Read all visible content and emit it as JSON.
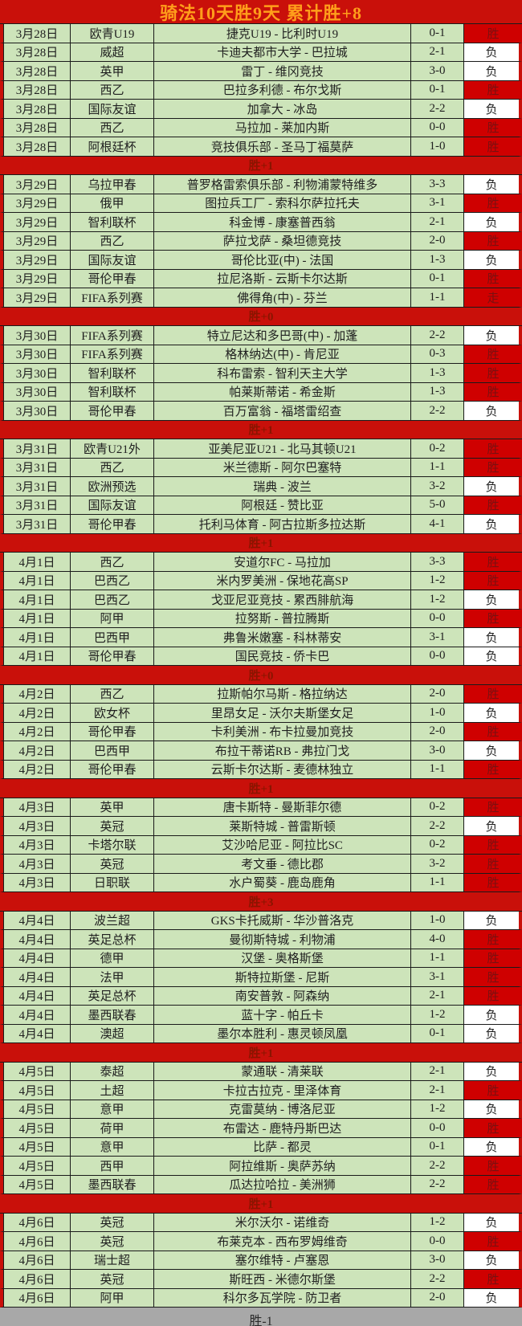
{
  "title": "骑法10天胜9天  累计胜+8",
  "colors": {
    "frame_red": "#c9100a",
    "title_text": "#ff9e1b",
    "row_green": "#cde4ba",
    "win_red": "#cf0000",
    "win_text": "#7a1010",
    "sep_text": "#8a1500",
    "footer_gray": "#a8a8a8",
    "text": "#1f1f1f"
  },
  "table": {
    "sections": [
      {
        "rows": [
          {
            "date": "3月28日",
            "league": "欧青U19",
            "match": "捷克U19 - 比利时U19",
            "score": "0-1",
            "result": "胜"
          },
          {
            "date": "3月28日",
            "league": "威超",
            "match": "卡迪夫都市大学 - 巴拉城",
            "score": "2-1",
            "result": "负"
          },
          {
            "date": "3月28日",
            "league": "英甲",
            "match": "雷丁 - 维冈竞技",
            "score": "3-0",
            "result": "负"
          },
          {
            "date": "3月28日",
            "league": "西乙",
            "match": "巴拉多利德 - 布尔戈斯",
            "score": "0-1",
            "result": "胜"
          },
          {
            "date": "3月28日",
            "league": "国际友谊",
            "match": "加拿大 - 冰岛",
            "score": "2-2",
            "result": "负"
          },
          {
            "date": "3月28日",
            "league": "西乙",
            "match": "马拉加 - 莱加内斯",
            "score": "0-0",
            "result": "胜"
          },
          {
            "date": "3月28日",
            "league": "阿根廷杯",
            "match": "竞技俱乐部 - 圣马丁福莫萨",
            "score": "1-0",
            "result": "胜"
          }
        ],
        "summary": "胜+1",
        "summary_style": "red"
      },
      {
        "rows": [
          {
            "date": "3月29日",
            "league": "乌拉甲春",
            "match": "普罗格雷索俱乐部 - 利物浦蒙特维多",
            "score": "3-3",
            "result": "负"
          },
          {
            "date": "3月29日",
            "league": "俄甲",
            "match": "图拉兵工厂 - 索科尔萨拉托夫",
            "score": "3-1",
            "result": "胜"
          },
          {
            "date": "3月29日",
            "league": "智利联杯",
            "match": "科金博 - 康塞普西翁",
            "score": "2-1",
            "result": "负"
          },
          {
            "date": "3月29日",
            "league": "西乙",
            "match": "萨拉戈萨 - 桑坦德竞技",
            "score": "2-0",
            "result": "胜"
          },
          {
            "date": "3月29日",
            "league": "国际友谊",
            "match": "哥伦比亚(中) - 法国",
            "score": "1-3",
            "result": "负"
          },
          {
            "date": "3月29日",
            "league": "哥伦甲春",
            "match": "拉尼洛斯 - 云斯卡尔达斯",
            "score": "0-1",
            "result": "胜"
          },
          {
            "date": "3月29日",
            "league": "FIFA系列赛",
            "match": "佛得角(中) - 芬兰",
            "score": "1-1",
            "result": "走"
          }
        ],
        "summary": "胜+0",
        "summary_style": "red"
      },
      {
        "rows": [
          {
            "date": "3月30日",
            "league": "FIFA系列赛",
            "match": "特立尼达和多巴哥(中) - 加蓬",
            "score": "2-2",
            "result": "负"
          },
          {
            "date": "3月30日",
            "league": "FIFA系列赛",
            "match": "格林纳达(中) - 肯尼亚",
            "score": "0-3",
            "result": "胜"
          },
          {
            "date": "3月30日",
            "league": "智利联杯",
            "match": "科布雷索 - 智利天主大学",
            "score": "1-3",
            "result": "胜"
          },
          {
            "date": "3月30日",
            "league": "智利联杯",
            "match": "帕莱斯蒂诺 - 希金斯",
            "score": "1-3",
            "result": "胜"
          },
          {
            "date": "3月30日",
            "league": "哥伦甲春",
            "match": "百万富翁 - 福塔雷绍查",
            "score": "2-2",
            "result": "负"
          }
        ],
        "summary": "胜+1",
        "summary_style": "red"
      },
      {
        "rows": [
          {
            "date": "3月31日",
            "league": "欧青U21外",
            "match": "亚美尼亚U21 - 北马其顿U21",
            "score": "0-2",
            "result": "胜"
          },
          {
            "date": "3月31日",
            "league": "西乙",
            "match": "米兰德斯 - 阿尔巴塞特",
            "score": "1-1",
            "result": "胜"
          },
          {
            "date": "3月31日",
            "league": "欧洲预选",
            "match": "瑞典 - 波兰",
            "score": "3-2",
            "result": "负"
          },
          {
            "date": "3月31日",
            "league": "国际友谊",
            "match": "阿根廷 - 赞比亚",
            "score": "5-0",
            "result": "胜"
          },
          {
            "date": "3月31日",
            "league": "哥伦甲春",
            "match": "托利马体育 - 阿古拉斯多拉达斯",
            "score": "4-1",
            "result": "负"
          }
        ],
        "summary": "胜+1",
        "summary_style": "red"
      },
      {
        "rows": [
          {
            "date": "4月1日",
            "league": "西乙",
            "match": "安道尔FC - 马拉加",
            "score": "3-3",
            "result": "胜"
          },
          {
            "date": "4月1日",
            "league": "巴西乙",
            "match": "米内罗美洲 - 保地花高SP",
            "score": "1-2",
            "result": "胜"
          },
          {
            "date": "4月1日",
            "league": "巴西乙",
            "match": "戈亚尼亚竞技 - 累西腓航海",
            "score": "1-2",
            "result": "负"
          },
          {
            "date": "4月1日",
            "league": "阿甲",
            "match": "拉努斯 - 普拉腾斯",
            "score": "0-0",
            "result": "胜"
          },
          {
            "date": "4月1日",
            "league": "巴西甲",
            "match": "弗鲁米嫩塞 - 科林蒂安",
            "score": "3-1",
            "result": "负"
          },
          {
            "date": "4月1日",
            "league": "哥伦甲春",
            "match": "国民竞技 - 侨卡巴",
            "score": "0-0",
            "result": "负"
          }
        ],
        "summary": "胜+0",
        "summary_style": "red"
      },
      {
        "rows": [
          {
            "date": "4月2日",
            "league": "西乙",
            "match": "拉斯帕尔马斯 - 格拉纳达",
            "score": "2-0",
            "result": "胜"
          },
          {
            "date": "4月2日",
            "league": "欧女杯",
            "match": "里昂女足 - 沃尔夫斯堡女足",
            "score": "1-0",
            "result": "负"
          },
          {
            "date": "4月2日",
            "league": "哥伦甲春",
            "match": "卡利美洲 - 布卡拉曼加竞技",
            "score": "2-0",
            "result": "胜"
          },
          {
            "date": "4月2日",
            "league": "巴西甲",
            "match": "布拉干蒂诺RB - 弗拉门戈",
            "score": "3-0",
            "result": "负"
          },
          {
            "date": "4月2日",
            "league": "哥伦甲春",
            "match": "云斯卡尔达斯 - 麦德林独立",
            "score": "1-1",
            "result": "胜"
          }
        ],
        "summary": "胜+1",
        "summary_style": "red"
      },
      {
        "rows": [
          {
            "date": "4月3日",
            "league": "英甲",
            "match": "唐卡斯特 - 曼斯菲尔德",
            "score": "0-2",
            "result": "胜"
          },
          {
            "date": "4月3日",
            "league": "英冠",
            "match": "莱斯特城 - 普雷斯顿",
            "score": "2-2",
            "result": "负"
          },
          {
            "date": "4月3日",
            "league": "卡塔尔联",
            "match": "艾沙哈尼亚 - 阿拉比SC",
            "score": "0-2",
            "result": "胜"
          },
          {
            "date": "4月3日",
            "league": "英冠",
            "match": "考文垂 - 德比郡",
            "score": "3-2",
            "result": "胜"
          },
          {
            "date": "4月3日",
            "league": "日职联",
            "match": "水户蜀葵 - 鹿岛鹿角",
            "score": "1-1",
            "result": "胜"
          }
        ],
        "summary": "胜+3",
        "summary_style": "red"
      },
      {
        "rows": [
          {
            "date": "4月4日",
            "league": "波兰超",
            "match": "GKS卡托威斯 - 华沙普洛克",
            "score": "1-0",
            "result": "负"
          },
          {
            "date": "4月4日",
            "league": "英足总杯",
            "match": "曼彻斯特城 - 利物浦",
            "score": "4-0",
            "result": "胜"
          },
          {
            "date": "4月4日",
            "league": "德甲",
            "match": "汉堡 - 奥格斯堡",
            "score": "1-1",
            "result": "胜"
          },
          {
            "date": "4月4日",
            "league": "法甲",
            "match": "斯特拉斯堡 - 尼斯",
            "score": "3-1",
            "result": "胜"
          },
          {
            "date": "4月4日",
            "league": "英足总杯",
            "match": "南安普敦 - 阿森纳",
            "score": "2-1",
            "result": "胜"
          },
          {
            "date": "4月4日",
            "league": "墨西联春",
            "match": "蓝十字 - 帕丘卡",
            "score": "1-2",
            "result": "负"
          },
          {
            "date": "4月4日",
            "league": "澳超",
            "match": "墨尔本胜利 - 惠灵顿凤凰",
            "score": "0-1",
            "result": "负"
          }
        ],
        "summary": "胜+1",
        "summary_style": "red"
      },
      {
        "rows": [
          {
            "date": "4月5日",
            "league": "泰超",
            "match": "蒙通联 - 清莱联",
            "score": "2-1",
            "result": "负"
          },
          {
            "date": "4月5日",
            "league": "土超",
            "match": "卡拉古拉克 - 里泽体育",
            "score": "2-1",
            "result": "胜"
          },
          {
            "date": "4月5日",
            "league": "意甲",
            "match": "克雷莫纳 - 博洛尼亚",
            "score": "1-2",
            "result": "负"
          },
          {
            "date": "4月5日",
            "league": "荷甲",
            "match": "布雷达 - 鹿特丹斯巴达",
            "score": "0-0",
            "result": "胜"
          },
          {
            "date": "4月5日",
            "league": "意甲",
            "match": "比萨 - 都灵",
            "score": "0-1",
            "result": "负"
          },
          {
            "date": "4月5日",
            "league": "西甲",
            "match": "阿拉维斯 - 奥萨苏纳",
            "score": "2-2",
            "result": "胜"
          },
          {
            "date": "4月5日",
            "league": "墨西联春",
            "match": "瓜达拉哈拉 - 美洲狮",
            "score": "2-2",
            "result": "胜"
          }
        ],
        "summary": "胜+1",
        "summary_style": "red"
      },
      {
        "rows": [
          {
            "date": "4月6日",
            "league": "英冠",
            "match": "米尔沃尔 - 诺维奇",
            "score": "1-2",
            "result": "负"
          },
          {
            "date": "4月6日",
            "league": "英冠",
            "match": "布莱克本 - 西布罗姆维奇",
            "score": "0-0",
            "result": "胜"
          },
          {
            "date": "4月6日",
            "league": "瑞士超",
            "match": "塞尔维特 - 卢塞恩",
            "score": "3-0",
            "result": "负"
          },
          {
            "date": "4月6日",
            "league": "英冠",
            "match": "斯旺西 - 米德尔斯堡",
            "score": "2-2",
            "result": "胜"
          },
          {
            "date": "4月6日",
            "league": "阿甲",
            "match": "科尔多瓦学院 - 防卫者",
            "score": "2-0",
            "result": "负"
          }
        ],
        "summary": "胜-1",
        "summary_style": "gray"
      }
    ]
  }
}
